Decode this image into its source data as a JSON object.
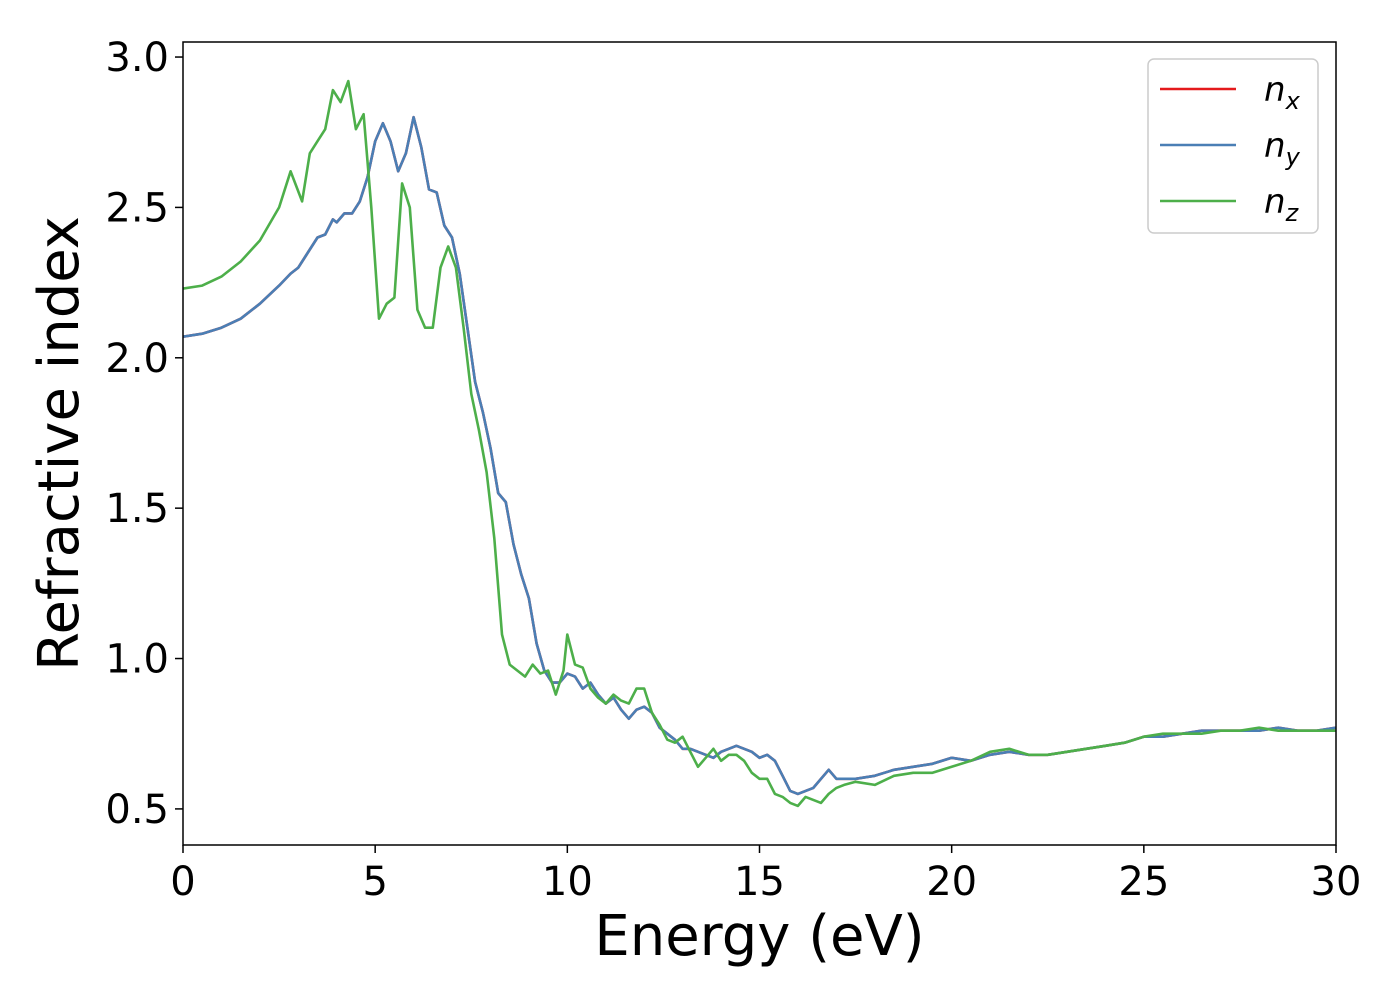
{
  "chart_data": {
    "type": "line",
    "xlabel": "Energy (eV)",
    "ylabel": "Refractive index",
    "xlim": [
      0,
      30
    ],
    "ylim": [
      0.38,
      3.05
    ],
    "xticks": [
      0,
      5,
      10,
      15,
      20,
      25,
      30
    ],
    "yticks": [
      0.5,
      1.0,
      1.5,
      2.0,
      2.5,
      3.0
    ],
    "xtick_labels": [
      "0",
      "5",
      "10",
      "15",
      "20",
      "25",
      "30"
    ],
    "ytick_labels": [
      "0.5",
      "1.0",
      "1.5",
      "2.0",
      "2.5",
      "3.0"
    ],
    "grid": false,
    "legend_position": "top-right",
    "series": [
      {
        "name": "n_x",
        "legend_base": "n",
        "legend_sub": "x",
        "color": "#e41a1c",
        "x": [
          0,
          0.5,
          1,
          1.5,
          2,
          2.5,
          2.8,
          3.0,
          3.2,
          3.5,
          3.7,
          3.9,
          4.0,
          4.2,
          4.4,
          4.6,
          4.8,
          5.0,
          5.2,
          5.4,
          5.6,
          5.8,
          6.0,
          6.2,
          6.4,
          6.6,
          6.8,
          7.0,
          7.2,
          7.4,
          7.6,
          7.8,
          8.0,
          8.2,
          8.4,
          8.6,
          8.8,
          9.0,
          9.2,
          9.4,
          9.6,
          9.8,
          10.0,
          10.2,
          10.4,
          10.6,
          10.8,
          11.0,
          11.2,
          11.4,
          11.6,
          11.8,
          12.0,
          12.2,
          12.4,
          12.6,
          12.8,
          13.0,
          13.2,
          13.4,
          13.6,
          13.8,
          14.0,
          14.2,
          14.4,
          14.6,
          14.8,
          15.0,
          15.2,
          15.4,
          15.6,
          15.8,
          16.0,
          16.2,
          16.4,
          16.6,
          16.8,
          17.0,
          17.2,
          17.5,
          18.0,
          18.5,
          19.0,
          19.5,
          20.0,
          20.5,
          21.0,
          21.5,
          22.0,
          22.5,
          23.0,
          23.5,
          24.0,
          24.5,
          25.0,
          25.5,
          26.0,
          26.5,
          27.0,
          27.5,
          28.0,
          28.5,
          29.0,
          29.5,
          30.0
        ],
        "y": [
          2.07,
          2.08,
          2.1,
          2.13,
          2.18,
          2.24,
          2.28,
          2.3,
          2.34,
          2.4,
          2.41,
          2.46,
          2.45,
          2.48,
          2.48,
          2.52,
          2.6,
          2.72,
          2.78,
          2.72,
          2.62,
          2.68,
          2.8,
          2.7,
          2.56,
          2.55,
          2.44,
          2.4,
          2.28,
          2.1,
          1.92,
          1.82,
          1.7,
          1.55,
          1.52,
          1.38,
          1.28,
          1.2,
          1.05,
          0.96,
          0.92,
          0.92,
          0.95,
          0.94,
          0.9,
          0.92,
          0.88,
          0.85,
          0.87,
          0.83,
          0.8,
          0.83,
          0.84,
          0.82,
          0.77,
          0.75,
          0.73,
          0.7,
          0.7,
          0.69,
          0.68,
          0.67,
          0.69,
          0.7,
          0.71,
          0.7,
          0.69,
          0.67,
          0.68,
          0.66,
          0.61,
          0.56,
          0.55,
          0.56,
          0.57,
          0.6,
          0.63,
          0.6,
          0.6,
          0.6,
          0.61,
          0.63,
          0.64,
          0.65,
          0.67,
          0.66,
          0.68,
          0.69,
          0.68,
          0.68,
          0.69,
          0.7,
          0.71,
          0.72,
          0.74,
          0.74,
          0.75,
          0.76,
          0.76,
          0.76,
          0.76,
          0.77,
          0.76,
          0.76,
          0.77
        ]
      },
      {
        "name": "n_y",
        "legend_base": "n",
        "legend_sub": "y",
        "color": "#4a7fb5",
        "x": [
          0,
          0.5,
          1,
          1.5,
          2,
          2.5,
          2.8,
          3.0,
          3.2,
          3.5,
          3.7,
          3.9,
          4.0,
          4.2,
          4.4,
          4.6,
          4.8,
          5.0,
          5.2,
          5.4,
          5.6,
          5.8,
          6.0,
          6.2,
          6.4,
          6.6,
          6.8,
          7.0,
          7.2,
          7.4,
          7.6,
          7.8,
          8.0,
          8.2,
          8.4,
          8.6,
          8.8,
          9.0,
          9.2,
          9.4,
          9.6,
          9.8,
          10.0,
          10.2,
          10.4,
          10.6,
          10.8,
          11.0,
          11.2,
          11.4,
          11.6,
          11.8,
          12.0,
          12.2,
          12.4,
          12.6,
          12.8,
          13.0,
          13.2,
          13.4,
          13.6,
          13.8,
          14.0,
          14.2,
          14.4,
          14.6,
          14.8,
          15.0,
          15.2,
          15.4,
          15.6,
          15.8,
          16.0,
          16.2,
          16.4,
          16.6,
          16.8,
          17.0,
          17.2,
          17.5,
          18.0,
          18.5,
          19.0,
          19.5,
          20.0,
          20.5,
          21.0,
          21.5,
          22.0,
          22.5,
          23.0,
          23.5,
          24.0,
          24.5,
          25.0,
          25.5,
          26.0,
          26.5,
          27.0,
          27.5,
          28.0,
          28.5,
          29.0,
          29.5,
          30.0
        ],
        "y": [
          2.07,
          2.08,
          2.1,
          2.13,
          2.18,
          2.24,
          2.28,
          2.3,
          2.34,
          2.4,
          2.41,
          2.46,
          2.45,
          2.48,
          2.48,
          2.52,
          2.6,
          2.72,
          2.78,
          2.72,
          2.62,
          2.68,
          2.8,
          2.7,
          2.56,
          2.55,
          2.44,
          2.4,
          2.28,
          2.1,
          1.92,
          1.82,
          1.7,
          1.55,
          1.52,
          1.38,
          1.28,
          1.2,
          1.05,
          0.96,
          0.92,
          0.92,
          0.95,
          0.94,
          0.9,
          0.92,
          0.88,
          0.85,
          0.87,
          0.83,
          0.8,
          0.83,
          0.84,
          0.82,
          0.77,
          0.75,
          0.73,
          0.7,
          0.7,
          0.69,
          0.68,
          0.67,
          0.69,
          0.7,
          0.71,
          0.7,
          0.69,
          0.67,
          0.68,
          0.66,
          0.61,
          0.56,
          0.55,
          0.56,
          0.57,
          0.6,
          0.63,
          0.6,
          0.6,
          0.6,
          0.61,
          0.63,
          0.64,
          0.65,
          0.67,
          0.66,
          0.68,
          0.69,
          0.68,
          0.68,
          0.69,
          0.7,
          0.71,
          0.72,
          0.74,
          0.74,
          0.75,
          0.76,
          0.76,
          0.76,
          0.76,
          0.77,
          0.76,
          0.76,
          0.77
        ]
      },
      {
        "name": "n_z",
        "legend_base": "n",
        "legend_sub": "z",
        "color": "#4daf4a",
        "x": [
          0,
          0.5,
          1,
          1.5,
          2,
          2.5,
          2.8,
          3.1,
          3.3,
          3.5,
          3.7,
          3.9,
          4.1,
          4.3,
          4.5,
          4.7,
          4.9,
          5.1,
          5.3,
          5.5,
          5.7,
          5.9,
          6.1,
          6.3,
          6.5,
          6.7,
          6.9,
          7.1,
          7.3,
          7.5,
          7.7,
          7.9,
          8.1,
          8.3,
          8.5,
          8.7,
          8.9,
          9.1,
          9.3,
          9.5,
          9.7,
          9.9,
          10.0,
          10.2,
          10.4,
          10.6,
          10.8,
          11.0,
          11.2,
          11.4,
          11.6,
          11.8,
          12.0,
          12.2,
          12.4,
          12.6,
          12.8,
          13.0,
          13.2,
          13.4,
          13.6,
          13.8,
          14.0,
          14.2,
          14.4,
          14.6,
          14.8,
          15.0,
          15.2,
          15.4,
          15.6,
          15.8,
          16.0,
          16.2,
          16.4,
          16.6,
          16.8,
          17.0,
          17.2,
          17.5,
          18.0,
          18.5,
          19.0,
          19.5,
          20.0,
          20.5,
          21.0,
          21.5,
          22.0,
          22.5,
          23.0,
          23.5,
          24.0,
          24.5,
          25.0,
          25.5,
          26.0,
          26.5,
          27.0,
          27.5,
          28.0,
          28.5,
          29.0,
          29.5,
          30.0
        ],
        "y": [
          2.23,
          2.24,
          2.27,
          2.32,
          2.39,
          2.5,
          2.62,
          2.52,
          2.68,
          2.72,
          2.76,
          2.89,
          2.85,
          2.92,
          2.76,
          2.81,
          2.5,
          2.13,
          2.18,
          2.2,
          2.58,
          2.5,
          2.16,
          2.1,
          2.1,
          2.3,
          2.37,
          2.3,
          2.1,
          1.88,
          1.76,
          1.62,
          1.4,
          1.08,
          0.98,
          0.96,
          0.94,
          0.98,
          0.95,
          0.96,
          0.88,
          0.96,
          1.08,
          0.98,
          0.97,
          0.9,
          0.87,
          0.85,
          0.88,
          0.86,
          0.85,
          0.9,
          0.9,
          0.82,
          0.78,
          0.73,
          0.72,
          0.74,
          0.69,
          0.64,
          0.67,
          0.7,
          0.66,
          0.68,
          0.68,
          0.66,
          0.62,
          0.6,
          0.6,
          0.55,
          0.54,
          0.52,
          0.51,
          0.54,
          0.53,
          0.52,
          0.55,
          0.57,
          0.58,
          0.59,
          0.58,
          0.61,
          0.62,
          0.62,
          0.64,
          0.66,
          0.69,
          0.7,
          0.68,
          0.68,
          0.69,
          0.7,
          0.71,
          0.72,
          0.74,
          0.75,
          0.75,
          0.75,
          0.76,
          0.76,
          0.77,
          0.76,
          0.76,
          0.76,
          0.76
        ]
      }
    ]
  }
}
